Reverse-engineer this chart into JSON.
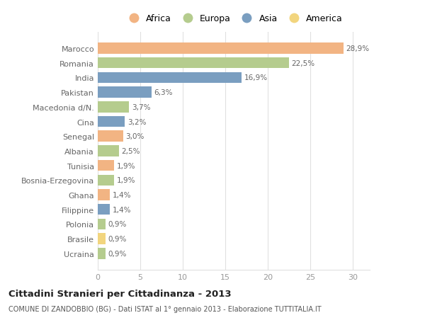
{
  "countries": [
    "Marocco",
    "Romania",
    "India",
    "Pakistan",
    "Macedonia d/N.",
    "Cina",
    "Senegal",
    "Albania",
    "Tunisia",
    "Bosnia-Erzegovina",
    "Ghana",
    "Filippine",
    "Polonia",
    "Brasile",
    "Ucraina"
  ],
  "values": [
    28.9,
    22.5,
    16.9,
    6.3,
    3.7,
    3.2,
    3.0,
    2.5,
    1.9,
    1.9,
    1.4,
    1.4,
    0.9,
    0.9,
    0.9
  ],
  "labels": [
    "28,9%",
    "22,5%",
    "16,9%",
    "6,3%",
    "3,7%",
    "3,2%",
    "3,0%",
    "2,5%",
    "1,9%",
    "1,9%",
    "1,4%",
    "1,4%",
    "0,9%",
    "0,9%",
    "0,9%"
  ],
  "continents": [
    "Africa",
    "Europa",
    "Asia",
    "Asia",
    "Europa",
    "Asia",
    "Africa",
    "Europa",
    "Africa",
    "Europa",
    "Africa",
    "Asia",
    "Europa",
    "America",
    "Europa"
  ],
  "continent_colors": {
    "Africa": "#F2B483",
    "Europa": "#B5CC8E",
    "Asia": "#7A9EC0",
    "America": "#F2D57E"
  },
  "legend_order": [
    "Africa",
    "Europa",
    "Asia",
    "America"
  ],
  "title": "Cittadini Stranieri per Cittadinanza - 2013",
  "subtitle": "COMUNE DI ZANDOBBIO (BG) - Dati ISTAT al 1° gennaio 2013 - Elaborazione TUTTITALIA.IT",
  "xlim": [
    0,
    32
  ],
  "xticks": [
    0,
    5,
    10,
    15,
    20,
    25,
    30
  ],
  "bg_color": "#FFFFFF",
  "grid_color": "#E0E0E0",
  "bar_height": 0.75
}
